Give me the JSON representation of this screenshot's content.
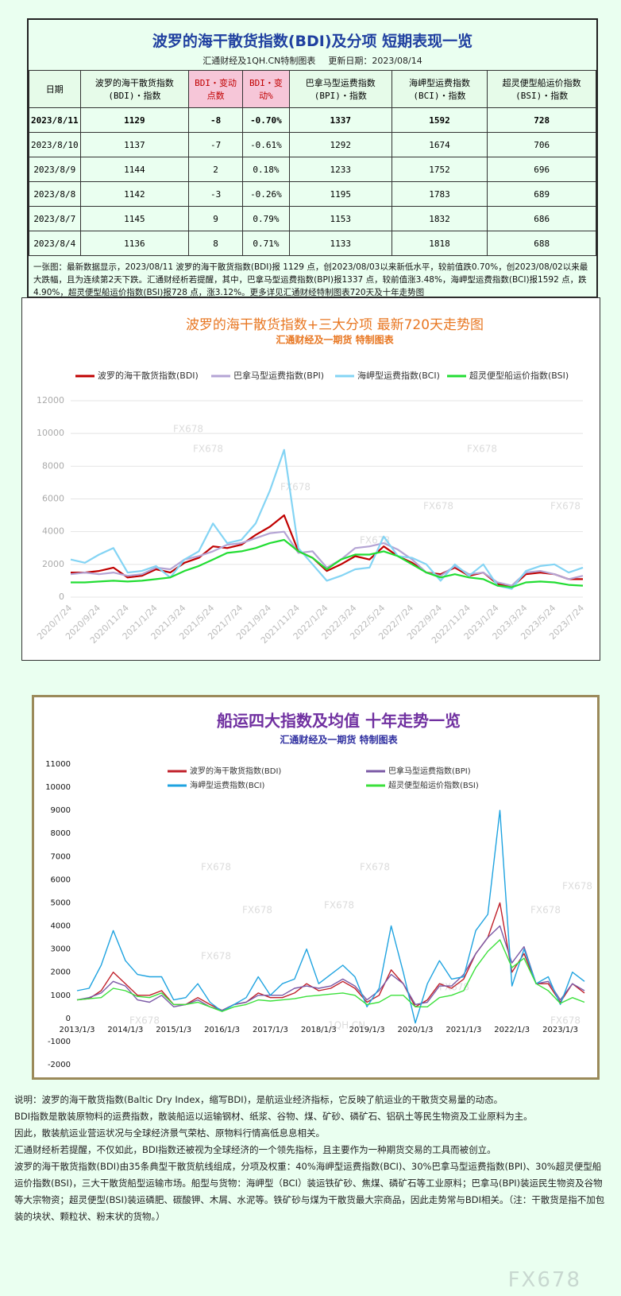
{
  "table": {
    "title": "波罗的海干散货指数(BDI)及分项  短期表现一览",
    "subtitle": "汇通财经及1QH.CN特制图表",
    "update": "更新日期：2023/08/14",
    "header": [
      "日期",
      "波罗的海干散货指数(BDI)・指数",
      "BDI・变动点数",
      "BDI・变动%",
      "巴拿马型运费指数(BPI)・指数",
      "海岬型运费指数(BCI)・指数",
      "超灵便型船运价指数(BSI)・指数"
    ],
    "rows": [
      [
        "2023/8/11",
        "1129",
        "-8",
        "-0.70%",
        "1337",
        "1592",
        "728"
      ],
      [
        "2023/8/10",
        "1137",
        "-7",
        "-0.61%",
        "1292",
        "1674",
        "706"
      ],
      [
        "2023/8/9",
        "1144",
        "2",
        "0.18%",
        "1233",
        "1752",
        "696"
      ],
      [
        "2023/8/8",
        "1142",
        "-3",
        "-0.26%",
        "1195",
        "1783",
        "689"
      ],
      [
        "2023/8/7",
        "1145",
        "9",
        "0.79%",
        "1153",
        "1832",
        "686"
      ],
      [
        "2023/8/4",
        "1136",
        "8",
        "0.71%",
        "1133",
        "1818",
        "688"
      ]
    ],
    "summary": "一张图：最新数据显示，2023/08/11 波罗的海干散货指数(BDI)报 1129 点，创2023/08/03以来新低水平，较前值跌0.70%，创2023/08/02以来最大跌幅，且为连续第2天下跌。汇通财经析若提醒，其中，巴拿马型运费指数(BPI)报1337 点，较前值涨3.48%，海岬型运费指数(BCI)报1592 点，跌4.90%，超灵便型船运价指数(BSI)报728 点，涨3.12%。更多详见汇通财经特制图表720天及十年走势图"
  },
  "chart_data": [
    {
      "type": "line",
      "title": "波罗的海干散货指数+三大分项  最新720天走势图",
      "subtitle": "汇通财经及一期货  特制图表",
      "watermarks": [
        "FX678"
      ],
      "categories": [
        "2020/7/24",
        null,
        "2020/9/24",
        null,
        "2020/11/24",
        null,
        "2021/1/24",
        null,
        "2021/3/24",
        null,
        "2021/5/24",
        null,
        "2021/7/24",
        null,
        "2021/9/24",
        null,
        "2021/11/24",
        null,
        "2022/1/24",
        null,
        "2022/3/24",
        null,
        "2022/5/24",
        null,
        "2022/7/24",
        null,
        "2022/9/24",
        null,
        "2022/11/24",
        null,
        "2023/1/24",
        null,
        "2023/3/24",
        null,
        "2023/5/24",
        null,
        "2023/7/24"
      ],
      "series": [
        {
          "name": "波罗的海干散货指数(BDI)",
          "color": "#c00000",
          "values": [
            1500,
            1500,
            1600,
            1800,
            1200,
            1300,
            1700,
            1500,
            2100,
            2400,
            3100,
            3000,
            3200,
            3800,
            4300,
            5000,
            2800,
            2400,
            1600,
            2000,
            2500,
            2300,
            3100,
            2500,
            2100,
            1500,
            1400,
            1800,
            1300,
            1500,
            800,
            600,
            1400,
            1500,
            1400,
            1100,
            1100
          ]
        },
        {
          "name": "巴拿马型运费指数(BPI)",
          "color": "#b4a4d4",
          "values": [
            1400,
            1500,
            1400,
            1500,
            1300,
            1400,
            1800,
            1700,
            2300,
            2500,
            2800,
            3200,
            3300,
            3600,
            3900,
            4000,
            2700,
            2800,
            1800,
            2300,
            3000,
            3100,
            3300,
            2900,
            2300,
            1500,
            1300,
            1900,
            1400,
            1500,
            900,
            700,
            1500,
            1600,
            1400,
            1100,
            1300
          ]
        },
        {
          "name": "海岬型运费指数(BCI)",
          "color": "#84d4f4",
          "values": [
            2300,
            2100,
            2600,
            3000,
            1500,
            1600,
            1900,
            1200,
            2300,
            2800,
            4500,
            3300,
            3500,
            4500,
            6500,
            9000,
            3000,
            2000,
            1000,
            1300,
            1700,
            1800,
            3700,
            2500,
            2400,
            2000,
            1000,
            2000,
            1300,
            2000,
            700,
            500,
            1600,
            1900,
            2000,
            1500,
            1800
          ]
        },
        {
          "name": "超灵便型船运价指数(BSI)",
          "color": "#22dd33",
          "values": [
            900,
            900,
            950,
            1000,
            950,
            1000,
            1100,
            1200,
            1600,
            1900,
            2300,
            2700,
            2800,
            3000,
            3300,
            3500,
            2800,
            2400,
            1700,
            2300,
            2600,
            2600,
            2800,
            2500,
            2000,
            1500,
            1200,
            1400,
            1200,
            1100,
            700,
            600,
            900,
            950,
            900,
            750,
            700
          ]
        }
      ],
      "ylim": [
        0,
        12000
      ],
      "yticks": [
        0,
        2000,
        4000,
        6000,
        8000,
        10000,
        12000
      ],
      "grid": true
    },
    {
      "type": "line",
      "title": "船运四大指数及均值 十年走势一览",
      "subtitle": "汇通财经及一期货 特制图表",
      "watermarks": [
        "FX678",
        "1QH.CN"
      ],
      "categories": [
        "2013/1/3",
        null,
        null,
        null,
        "2014/1/3",
        null,
        null,
        null,
        "2015/1/3",
        null,
        null,
        null,
        "2016/1/3",
        null,
        null,
        null,
        "2017/1/3",
        null,
        null,
        null,
        "2018/1/3",
        null,
        null,
        null,
        "2019/1/3",
        null,
        null,
        null,
        "2020/1/3",
        null,
        null,
        null,
        "2021/1/3",
        null,
        null,
        null,
        "2022/1/3",
        null,
        null,
        null,
        "2023/1/3",
        null,
        null
      ],
      "series": [
        {
          "name": "波罗的海干散货指数(BDI)",
          "color": "#c0202a",
          "values": [
            800,
            850,
            1200,
            2000,
            1500,
            1000,
            1000,
            1200,
            600,
            600,
            900,
            600,
            350,
            600,
            700,
            1100,
            900,
            900,
            1100,
            1500,
            1200,
            1300,
            1600,
            1300,
            700,
            1000,
            2100,
            1500,
            500,
            800,
            1500,
            1300,
            1700,
            2800,
            3500,
            5000,
            2000,
            2800,
            1500,
            1500,
            700,
            1500,
            1100
          ]
        },
        {
          "name": "巴拿马型运费指数(BPI)",
          "color": "#7b5aa6",
          "values": [
            800,
            900,
            1100,
            1600,
            1400,
            800,
            700,
            1000,
            500,
            600,
            800,
            500,
            350,
            600,
            700,
            1000,
            1000,
            1000,
            1300,
            1400,
            1300,
            1400,
            1700,
            1400,
            800,
            1200,
            1900,
            1500,
            600,
            700,
            1400,
            1400,
            1900,
            2800,
            3500,
            4000,
            2400,
            3100,
            1500,
            1600,
            800,
            1500,
            1200
          ]
        },
        {
          "name": "海岬型运费指数(BCI)",
          "color": "#1fa3e0",
          "values": [
            1200,
            1300,
            2300,
            3800,
            2500,
            1900,
            1800,
            1800,
            800,
            900,
            1500,
            700,
            300,
            600,
            900,
            1800,
            1000,
            1500,
            1700,
            3000,
            1500,
            1900,
            2300,
            1800,
            500,
            1300,
            4000,
            2000,
            -200,
            1500,
            2500,
            1700,
            1800,
            3800,
            4500,
            9000,
            1400,
            3000,
            1500,
            1800,
            600,
            2000,
            1600
          ]
        },
        {
          "name": "超灵便型船运价指数(BSI)",
          "color": "#3be03b",
          "values": [
            800,
            850,
            900,
            1300,
            1200,
            950,
            900,
            1100,
            600,
            600,
            700,
            500,
            300,
            500,
            600,
            800,
            750,
            800,
            850,
            950,
            1000,
            1050,
            1100,
            1000,
            600,
            700,
            1000,
            1000,
            500,
            500,
            900,
            1000,
            1200,
            2200,
            2900,
            3400,
            2200,
            2600,
            1500,
            1200,
            650,
            900,
            700
          ]
        }
      ],
      "ylim": [
        -2000,
        11000
      ],
      "yticks": [
        -2000,
        -1000,
        0,
        1000,
        2000,
        3000,
        4000,
        5000,
        6000,
        7000,
        8000,
        9000,
        10000,
        11000
      ],
      "grid": false
    }
  ],
  "notes": [
    "说明：波罗的海干散货指数(Baltic Dry Index，缩写BDI)，是航运业经济指标，它反映了航运业的干散货交易量的动态。",
    "BDI指数是散装原物料的运费指数，散装船运以运输钢材、纸浆、谷物、煤、矿砂、磷矿石、铝矾土等民生物资及工业原料为主。",
    "因此，散装航运业营运状况与全球经济景气荣枯、原物料行情高低息息相关。",
    "汇通财经析若提醒，不仅如此，BDI指数还被视为全球经济的一个领先指标，且主要作为一种期货交易的工具而被创立。",
    "波罗的海干散货指数(BDI)由35条典型干散货航线组成，分项及权重：40%海岬型运费指数(BCI)、30%巴拿马型运费指数(BPI)、30%超灵便型船运价指数(BSI)，三大干散货船型运输市场。船型与货物：海岬型（BCI）装运铁矿砂、焦煤、磷矿石等工业原料；巴拿马(BPI)装运民生物资及谷物等大宗物资；超灵便型(BSI)装运磷肥、碳酸钾、木屑、水泥等。铁矿砂与煤为干散货最大宗商品，因此走势常与BDI相关。（注：干散货是指不加包装的块状、颗粒状、粉末状的货物。）"
  ],
  "logo": "FX678"
}
